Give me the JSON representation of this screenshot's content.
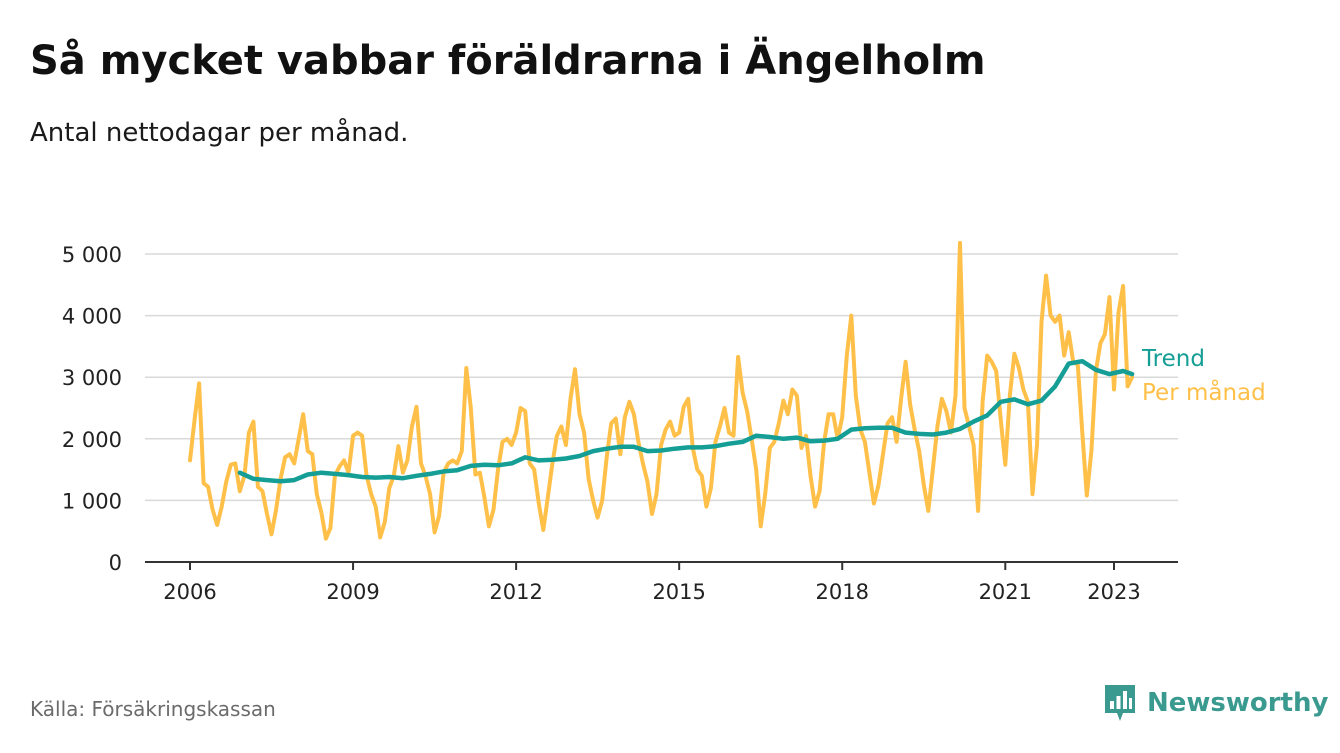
{
  "title": "Så mycket vabbar föräldrarna i Ängelholm",
  "subtitle": "Antal nettodagar per månad.",
  "source": "Källa: Försäkringskassan",
  "brand": {
    "name": "Newsworthy",
    "color": "#3a9a8f",
    "icon": "newsworthy-logo-icon"
  },
  "colors": {
    "monthly": "#ffc04a",
    "trend": "#149e95",
    "grid": "#d9d9d9",
    "axis": "#333333"
  },
  "chart_data": {
    "type": "line",
    "ylim": [
      0,
      5000
    ],
    "y_ticks": [
      {
        "value": 0,
        "label": "0"
      },
      {
        "value": 1000,
        "label": "1 000"
      },
      {
        "value": 2000,
        "label": "2 000"
      },
      {
        "value": 3000,
        "label": "3 000"
      },
      {
        "value": 4000,
        "label": "4 000"
      },
      {
        "value": 5000,
        "label": "5 000"
      }
    ],
    "x_range": [
      "2005-03",
      "2024-01"
    ],
    "x_ticks": [
      {
        "value": "2006-01",
        "label": "2006"
      },
      {
        "value": "2009-01",
        "label": "2009"
      },
      {
        "value": "2012-01",
        "label": "2012"
      },
      {
        "value": "2015-01",
        "label": "2015"
      },
      {
        "value": "2018-01",
        "label": "2018"
      },
      {
        "value": "2021-01",
        "label": "2021"
      },
      {
        "value": "2023-01",
        "label": "2023"
      }
    ],
    "series": [
      {
        "name": "Per månad",
        "color": "#ffc04a",
        "points": [
          [
            "2006-01",
            1650
          ],
          [
            "2006-02",
            2300
          ],
          [
            "2006-03",
            2900
          ],
          [
            "2006-04",
            1280
          ],
          [
            "2006-05",
            1220
          ],
          [
            "2006-06",
            850
          ],
          [
            "2006-07",
            600
          ],
          [
            "2006-08",
            900
          ],
          [
            "2006-09",
            1300
          ],
          [
            "2006-10",
            1580
          ],
          [
            "2006-11",
            1600
          ],
          [
            "2006-12",
            1150
          ],
          [
            "2007-01",
            1400
          ],
          [
            "2007-02",
            2100
          ],
          [
            "2007-03",
            2280
          ],
          [
            "2007-04",
            1220
          ],
          [
            "2007-05",
            1150
          ],
          [
            "2007-06",
            780
          ],
          [
            "2007-07",
            450
          ],
          [
            "2007-08",
            850
          ],
          [
            "2007-09",
            1350
          ],
          [
            "2007-10",
            1700
          ],
          [
            "2007-11",
            1750
          ],
          [
            "2007-12",
            1600
          ],
          [
            "2008-01",
            2000
          ],
          [
            "2008-02",
            2400
          ],
          [
            "2008-03",
            1800
          ],
          [
            "2008-04",
            1750
          ],
          [
            "2008-05",
            1100
          ],
          [
            "2008-06",
            800
          ],
          [
            "2008-07",
            380
          ],
          [
            "2008-08",
            550
          ],
          [
            "2008-09",
            1400
          ],
          [
            "2008-10",
            1550
          ],
          [
            "2008-11",
            1650
          ],
          [
            "2008-12",
            1450
          ],
          [
            "2009-01",
            2050
          ],
          [
            "2009-02",
            2100
          ],
          [
            "2009-03",
            2050
          ],
          [
            "2009-04",
            1400
          ],
          [
            "2009-05",
            1100
          ],
          [
            "2009-06",
            900
          ],
          [
            "2009-07",
            400
          ],
          [
            "2009-08",
            650
          ],
          [
            "2009-09",
            1200
          ],
          [
            "2009-10",
            1400
          ],
          [
            "2009-11",
            1880
          ],
          [
            "2009-12",
            1450
          ],
          [
            "2010-01",
            1650
          ],
          [
            "2010-02",
            2200
          ],
          [
            "2010-03",
            2520
          ],
          [
            "2010-04",
            1600
          ],
          [
            "2010-05",
            1400
          ],
          [
            "2010-06",
            1100
          ],
          [
            "2010-07",
            480
          ],
          [
            "2010-08",
            750
          ],
          [
            "2010-09",
            1450
          ],
          [
            "2010-10",
            1600
          ],
          [
            "2010-11",
            1650
          ],
          [
            "2010-12",
            1600
          ],
          [
            "2011-01",
            1800
          ],
          [
            "2011-02",
            3150
          ],
          [
            "2011-03",
            2500
          ],
          [
            "2011-04",
            1420
          ],
          [
            "2011-05",
            1450
          ],
          [
            "2011-06",
            1050
          ],
          [
            "2011-07",
            580
          ],
          [
            "2011-08",
            850
          ],
          [
            "2011-09",
            1500
          ],
          [
            "2011-10",
            1950
          ],
          [
            "2011-11",
            2000
          ],
          [
            "2011-12",
            1900
          ],
          [
            "2012-01",
            2100
          ],
          [
            "2012-02",
            2500
          ],
          [
            "2012-03",
            2450
          ],
          [
            "2012-04",
            1600
          ],
          [
            "2012-05",
            1500
          ],
          [
            "2012-06",
            950
          ],
          [
            "2012-07",
            520
          ],
          [
            "2012-08",
            1050
          ],
          [
            "2012-09",
            1600
          ],
          [
            "2012-10",
            2050
          ],
          [
            "2012-11",
            2200
          ],
          [
            "2012-12",
            1900
          ],
          [
            "2013-01",
            2650
          ],
          [
            "2013-02",
            3130
          ],
          [
            "2013-03",
            2400
          ],
          [
            "2013-04",
            2100
          ],
          [
            "2013-05",
            1350
          ],
          [
            "2013-06",
            1000
          ],
          [
            "2013-07",
            720
          ],
          [
            "2013-08",
            1000
          ],
          [
            "2013-09",
            1700
          ],
          [
            "2013-10",
            2250
          ],
          [
            "2013-11",
            2330
          ],
          [
            "2013-12",
            1750
          ],
          [
            "2014-01",
            2350
          ],
          [
            "2014-02",
            2600
          ],
          [
            "2014-03",
            2400
          ],
          [
            "2014-04",
            1950
          ],
          [
            "2014-05",
            1600
          ],
          [
            "2014-06",
            1300
          ],
          [
            "2014-07",
            780
          ],
          [
            "2014-08",
            1100
          ],
          [
            "2014-09",
            1900
          ],
          [
            "2014-10",
            2150
          ],
          [
            "2014-11",
            2280
          ],
          [
            "2014-12",
            2050
          ],
          [
            "2015-01",
            2100
          ],
          [
            "2015-02",
            2520
          ],
          [
            "2015-03",
            2650
          ],
          [
            "2015-04",
            1850
          ],
          [
            "2015-05",
            1500
          ],
          [
            "2015-06",
            1400
          ],
          [
            "2015-07",
            900
          ],
          [
            "2015-08",
            1200
          ],
          [
            "2015-09",
            1950
          ],
          [
            "2015-10",
            2200
          ],
          [
            "2015-11",
            2500
          ],
          [
            "2015-12",
            2100
          ],
          [
            "2016-01",
            2050
          ],
          [
            "2016-02",
            3330
          ],
          [
            "2016-03",
            2750
          ],
          [
            "2016-04",
            2450
          ],
          [
            "2016-05",
            2000
          ],
          [
            "2016-06",
            1500
          ],
          [
            "2016-07",
            580
          ],
          [
            "2016-08",
            1100
          ],
          [
            "2016-09",
            1850
          ],
          [
            "2016-10",
            1950
          ],
          [
            "2016-11",
            2250
          ],
          [
            "2016-12",
            2620
          ],
          [
            "2017-01",
            2400
          ],
          [
            "2017-02",
            2800
          ],
          [
            "2017-03",
            2700
          ],
          [
            "2017-04",
            1850
          ],
          [
            "2017-05",
            2050
          ],
          [
            "2017-06",
            1400
          ],
          [
            "2017-07",
            900
          ],
          [
            "2017-08",
            1150
          ],
          [
            "2017-09",
            1950
          ],
          [
            "2017-10",
            2400
          ],
          [
            "2017-11",
            2400
          ],
          [
            "2017-12",
            2000
          ],
          [
            "2018-01",
            2350
          ],
          [
            "2018-02",
            3350
          ],
          [
            "2018-03",
            4000
          ],
          [
            "2018-04",
            2700
          ],
          [
            "2018-05",
            2150
          ],
          [
            "2018-06",
            1950
          ],
          [
            "2018-07",
            1450
          ],
          [
            "2018-08",
            950
          ],
          [
            "2018-09",
            1250
          ],
          [
            "2018-10",
            1750
          ],
          [
            "2018-11",
            2250
          ],
          [
            "2018-12",
            2350
          ],
          [
            "2019-01",
            1950
          ],
          [
            "2019-02",
            2650
          ],
          [
            "2019-03",
            3250
          ],
          [
            "2019-04",
            2550
          ],
          [
            "2019-05",
            2150
          ],
          [
            "2019-06",
            1800
          ],
          [
            "2019-07",
            1250
          ],
          [
            "2019-08",
            830
          ],
          [
            "2019-09",
            1500
          ],
          [
            "2019-10",
            2200
          ],
          [
            "2019-11",
            2650
          ],
          [
            "2019-12",
            2450
          ],
          [
            "2020-01",
            2100
          ],
          [
            "2020-02",
            2700
          ],
          [
            "2020-03",
            5180
          ],
          [
            "2020-04",
            2500
          ],
          [
            "2020-05",
            2200
          ],
          [
            "2020-06",
            1900
          ],
          [
            "2020-07",
            830
          ],
          [
            "2020-08",
            2600
          ],
          [
            "2020-09",
            3350
          ],
          [
            "2020-10",
            3250
          ],
          [
            "2020-11",
            3100
          ],
          [
            "2020-12",
            2300
          ],
          [
            "2021-01",
            1580
          ],
          [
            "2021-02",
            2700
          ],
          [
            "2021-03",
            3380
          ],
          [
            "2021-04",
            3150
          ],
          [
            "2021-05",
            2800
          ],
          [
            "2021-06",
            2600
          ],
          [
            "2021-07",
            1100
          ],
          [
            "2021-08",
            1900
          ],
          [
            "2021-09",
            3900
          ],
          [
            "2021-10",
            4650
          ],
          [
            "2021-11",
            4000
          ],
          [
            "2021-12",
            3900
          ],
          [
            "2022-01",
            4000
          ],
          [
            "2022-02",
            3350
          ],
          [
            "2022-03",
            3730
          ],
          [
            "2022-04",
            3250
          ],
          [
            "2022-05",
            3200
          ],
          [
            "2022-06",
            2100
          ],
          [
            "2022-07",
            1080
          ],
          [
            "2022-08",
            1800
          ],
          [
            "2022-09",
            3100
          ],
          [
            "2022-10",
            3550
          ],
          [
            "2022-11",
            3700
          ],
          [
            "2022-12",
            4300
          ],
          [
            "2023-01",
            2800
          ],
          [
            "2023-02",
            4050
          ],
          [
            "2023-03",
            4480
          ],
          [
            "2023-04",
            2850
          ],
          [
            "2023-05",
            3000
          ]
        ]
      },
      {
        "name": "Trend",
        "color": "#149e95",
        "points": [
          [
            "2006-12",
            1450
          ],
          [
            "2007-03",
            1350
          ],
          [
            "2007-06",
            1330
          ],
          [
            "2007-09",
            1310
          ],
          [
            "2007-12",
            1330
          ],
          [
            "2008-03",
            1420
          ],
          [
            "2008-06",
            1450
          ],
          [
            "2008-09",
            1430
          ],
          [
            "2008-12",
            1410
          ],
          [
            "2009-03",
            1380
          ],
          [
            "2009-06",
            1370
          ],
          [
            "2009-09",
            1380
          ],
          [
            "2009-12",
            1360
          ],
          [
            "2010-03",
            1400
          ],
          [
            "2010-06",
            1430
          ],
          [
            "2010-09",
            1470
          ],
          [
            "2010-12",
            1490
          ],
          [
            "2011-03",
            1560
          ],
          [
            "2011-06",
            1580
          ],
          [
            "2011-09",
            1570
          ],
          [
            "2011-12",
            1600
          ],
          [
            "2012-03",
            1700
          ],
          [
            "2012-06",
            1650
          ],
          [
            "2012-09",
            1660
          ],
          [
            "2012-12",
            1680
          ],
          [
            "2013-03",
            1720
          ],
          [
            "2013-06",
            1800
          ],
          [
            "2013-09",
            1840
          ],
          [
            "2013-12",
            1870
          ],
          [
            "2014-03",
            1870
          ],
          [
            "2014-06",
            1800
          ],
          [
            "2014-09",
            1810
          ],
          [
            "2014-12",
            1840
          ],
          [
            "2015-03",
            1860
          ],
          [
            "2015-06",
            1860
          ],
          [
            "2015-09",
            1880
          ],
          [
            "2015-12",
            1920
          ],
          [
            "2016-03",
            1950
          ],
          [
            "2016-06",
            2050
          ],
          [
            "2016-09",
            2030
          ],
          [
            "2016-12",
            2000
          ],
          [
            "2017-03",
            2020
          ],
          [
            "2017-06",
            1960
          ],
          [
            "2017-09",
            1970
          ],
          [
            "2017-12",
            2000
          ],
          [
            "2018-03",
            2150
          ],
          [
            "2018-06",
            2170
          ],
          [
            "2018-09",
            2180
          ],
          [
            "2018-12",
            2180
          ],
          [
            "2019-03",
            2100
          ],
          [
            "2019-06",
            2080
          ],
          [
            "2019-09",
            2070
          ],
          [
            "2019-12",
            2100
          ],
          [
            "2020-03",
            2160
          ],
          [
            "2020-06",
            2280
          ],
          [
            "2020-09",
            2380
          ],
          [
            "2020-12",
            2600
          ],
          [
            "2021-03",
            2640
          ],
          [
            "2021-06",
            2560
          ],
          [
            "2021-09",
            2620
          ],
          [
            "2021-12",
            2850
          ],
          [
            "2022-03",
            3220
          ],
          [
            "2022-06",
            3260
          ],
          [
            "2022-09",
            3120
          ],
          [
            "2022-12",
            3050
          ],
          [
            "2023-03",
            3100
          ],
          [
            "2023-05",
            3050
          ]
        ]
      }
    ],
    "legend_placement": "line-end"
  }
}
